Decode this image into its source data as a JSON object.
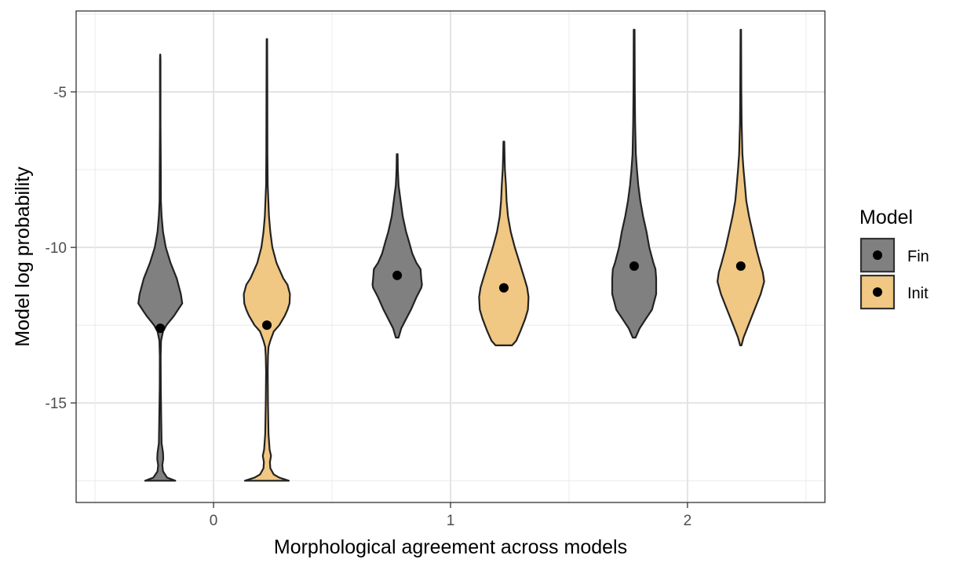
{
  "chart_data": {
    "type": "violin",
    "xlabel": "Morphological agreement across models",
    "ylabel": "Model log probability",
    "categories": [
      "0",
      "1",
      "2"
    ],
    "ylim": [
      -18.2,
      -2.4
    ],
    "xlim": [
      -0.58,
      2.58
    ],
    "y_ticks": [
      -15,
      -10,
      -5
    ],
    "y_tick_labels": [
      "-15",
      "-10",
      "-5"
    ],
    "grid": true,
    "legend": {
      "title": "Model",
      "position": "right",
      "entries": [
        {
          "label": "Fin",
          "color": "#808080"
        },
        {
          "label": "Init",
          "color": "#f0c783"
        }
      ]
    },
    "series": [
      {
        "name": "Fin",
        "color": "#808080",
        "violins": [
          {
            "category": "0",
            "mean": -12.6,
            "profile": [
              [
                -17.5,
                0.11
              ],
              [
                -17.4,
                0.05
              ],
              [
                -17.2,
                0.02
              ],
              [
                -17.0,
                0.015
              ],
              [
                -16.8,
                0.022
              ],
              [
                -16.6,
                0.02
              ],
              [
                -16.3,
                0.01
              ],
              [
                -15.5,
                0.007
              ],
              [
                -14.5,
                0.004
              ],
              [
                -13.5,
                0.003
              ],
              [
                -13.0,
                0.006
              ],
              [
                -12.7,
                0.02
              ],
              [
                -12.5,
                0.045
              ],
              [
                -12.2,
                0.1
              ],
              [
                -12.0,
                0.13
              ],
              [
                -11.8,
                0.16
              ],
              [
                -11.5,
                0.15
              ],
              [
                -11.0,
                0.12
              ],
              [
                -10.5,
                0.075
              ],
              [
                -10.0,
                0.04
              ],
              [
                -9.5,
                0.02
              ],
              [
                -9.0,
                0.01
              ],
              [
                -8.5,
                0.005
              ],
              [
                -7.5,
                0.004
              ],
              [
                -6.0,
                0.002
              ],
              [
                -4.0,
                0.002
              ],
              [
                -3.8,
                0.001
              ]
            ]
          },
          {
            "category": "1",
            "mean": -10.9,
            "profile": [
              [
                -12.9,
                0.01
              ],
              [
                -12.6,
                0.03
              ],
              [
                -12.3,
                0.065
              ],
              [
                -12.0,
                0.1
              ],
              [
                -11.6,
                0.14
              ],
              [
                -11.3,
                0.175
              ],
              [
                -11.2,
                0.18
              ],
              [
                -11.0,
                0.175
              ],
              [
                -10.7,
                0.17
              ],
              [
                -10.5,
                0.14
              ],
              [
                -10.2,
                0.11
              ],
              [
                -9.8,
                0.085
              ],
              [
                -9.5,
                0.065
              ],
              [
                -9.0,
                0.04
              ],
              [
                -8.5,
                0.025
              ],
              [
                -8.0,
                0.01
              ],
              [
                -7.5,
                0.005
              ],
              [
                -7.0,
                0.003
              ]
            ]
          },
          {
            "category": "2",
            "mean": -10.6,
            "profile": [
              [
                -12.9,
                0.01
              ],
              [
                -12.6,
                0.04
              ],
              [
                -12.3,
                0.085
              ],
              [
                -12.0,
                0.13
              ],
              [
                -11.5,
                0.16
              ],
              [
                -11.0,
                0.16
              ],
              [
                -10.7,
                0.155
              ],
              [
                -10.5,
                0.14
              ],
              [
                -10.0,
                0.11
              ],
              [
                -9.5,
                0.09
              ],
              [
                -9.0,
                0.065
              ],
              [
                -8.5,
                0.045
              ],
              [
                -8.0,
                0.03
              ],
              [
                -7.5,
                0.02
              ],
              [
                -7.0,
                0.012
              ],
              [
                -6.0,
                0.007
              ],
              [
                -5.0,
                0.005
              ],
              [
                -3.0,
                0.003
              ]
            ]
          }
        ]
      },
      {
        "name": "Init",
        "color": "#f0c783",
        "violins": [
          {
            "category": "0",
            "mean": -12.5,
            "profile": [
              [
                -17.5,
                0.16
              ],
              [
                -17.4,
                0.09
              ],
              [
                -17.3,
                0.05
              ],
              [
                -17.1,
                0.025
              ],
              [
                -16.9,
                0.022
              ],
              [
                -16.7,
                0.03
              ],
              [
                -16.5,
                0.02
              ],
              [
                -16.0,
                0.012
              ],
              [
                -15.0,
                0.008
              ],
              [
                -14.0,
                0.006
              ],
              [
                -13.5,
                0.008
              ],
              [
                -13.2,
                0.012
              ],
              [
                -13.0,
                0.025
              ],
              [
                -12.7,
                0.05
              ],
              [
                -12.5,
                0.09
              ],
              [
                -12.2,
                0.13
              ],
              [
                -12.0,
                0.15
              ],
              [
                -11.8,
                0.165
              ],
              [
                -11.5,
                0.168
              ],
              [
                -11.2,
                0.15
              ],
              [
                -11.0,
                0.12
              ],
              [
                -10.5,
                0.07
              ],
              [
                -10.0,
                0.04
              ],
              [
                -9.5,
                0.025
              ],
              [
                -9.0,
                0.015
              ],
              [
                -8.0,
                0.006
              ],
              [
                -7.0,
                0.004
              ],
              [
                -5.0,
                0.003
              ],
              [
                -3.3,
                0.002
              ]
            ]
          },
          {
            "category": "1",
            "mean": -11.3,
            "profile": [
              [
                -13.15,
                0.06
              ],
              [
                -13.0,
                0.09
              ],
              [
                -12.7,
                0.12
              ],
              [
                -12.3,
                0.155
              ],
              [
                -12.0,
                0.175
              ],
              [
                -11.6,
                0.18
              ],
              [
                -11.3,
                0.17
              ],
              [
                -11.0,
                0.15
              ],
              [
                -10.5,
                0.115
              ],
              [
                -10.0,
                0.08
              ],
              [
                -9.5,
                0.05
              ],
              [
                -9.0,
                0.03
              ],
              [
                -8.5,
                0.02
              ],
              [
                -8.0,
                0.015
              ],
              [
                -7.5,
                0.008
              ],
              [
                -7.0,
                0.005
              ],
              [
                -6.6,
                0.003
              ]
            ]
          },
          {
            "category": "2",
            "mean": -10.6,
            "profile": [
              [
                -13.15,
                0.005
              ],
              [
                -12.9,
                0.02
              ],
              [
                -12.5,
                0.055
              ],
              [
                -12.0,
                0.1
              ],
              [
                -11.5,
                0.145
              ],
              [
                -11.1,
                0.17
              ],
              [
                -10.8,
                0.16
              ],
              [
                -10.5,
                0.14
              ],
              [
                -10.0,
                0.11
              ],
              [
                -9.5,
                0.085
              ],
              [
                -9.0,
                0.06
              ],
              [
                -8.5,
                0.04
              ],
              [
                -8.0,
                0.03
              ],
              [
                -7.5,
                0.02
              ],
              [
                -7.0,
                0.012
              ],
              [
                -6.0,
                0.006
              ],
              [
                -5.0,
                0.004
              ],
              [
                -3.0,
                0.002
              ]
            ]
          }
        ]
      }
    ]
  }
}
